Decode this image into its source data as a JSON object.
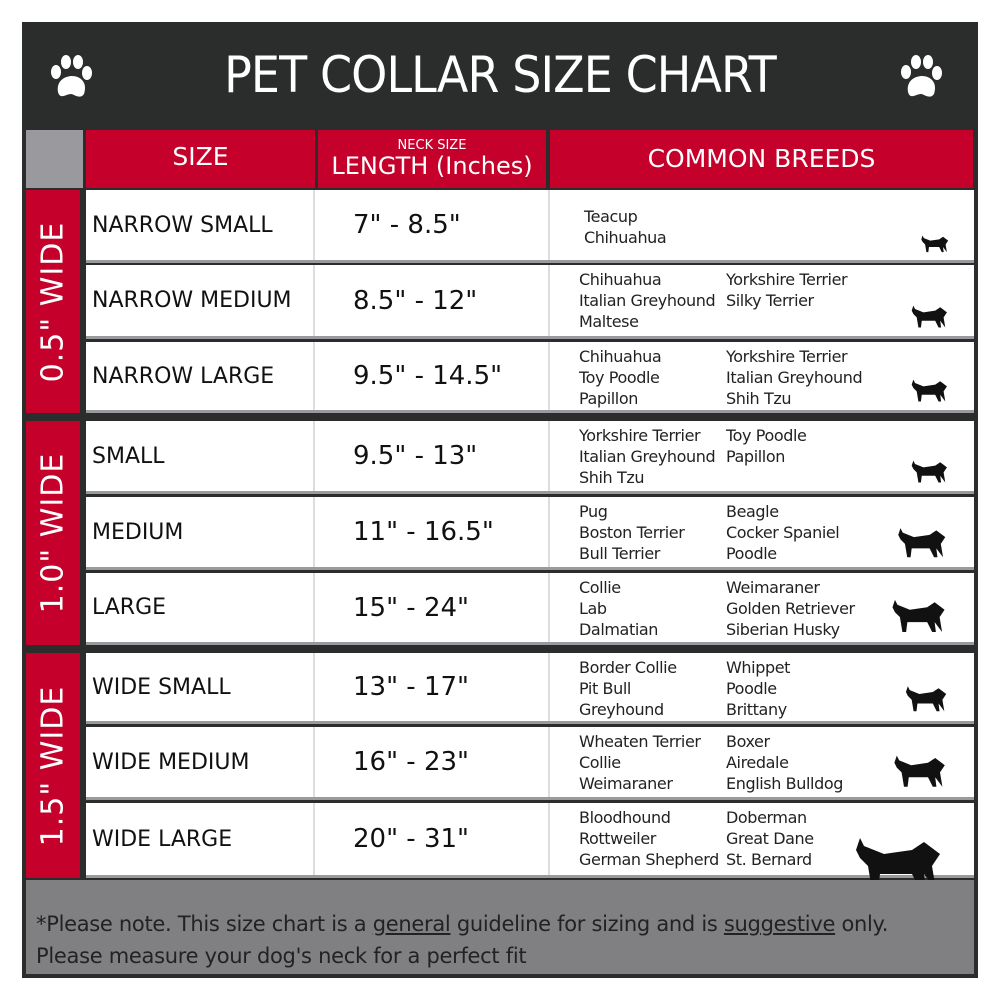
{
  "title": "PET COLLAR SIZE CHART",
  "header": {
    "size": "SIZE",
    "neck_size": "NECK SIZE",
    "length": "LENGTH (Inches)",
    "breeds": "COMMON BREEDS"
  },
  "colors": {
    "accent": "#c4002b",
    "dark": "#2b2c2c",
    "footer": "#808083"
  },
  "icons": [
    "paw-print-icon",
    "dog-silhouette-icon"
  ],
  "groups": [
    {
      "label": "0.5\" WIDE"
    },
    {
      "label": "1.0\" WIDE"
    },
    {
      "label": "1.5\" WIDE"
    }
  ],
  "rows": [
    {
      "size": "NARROW SMALL",
      "length": "7\" - 8.5\"",
      "breeds1": [
        "Teacup",
        "Chihuahua"
      ],
      "breeds2": []
    },
    {
      "size": "NARROW MEDIUM",
      "length": "8.5\" - 12\"",
      "breeds1": [
        "Chihuahua",
        "Italian Greyhound",
        "Maltese"
      ],
      "breeds2": [
        "Yorkshire Terrier",
        "Silky Terrier"
      ]
    },
    {
      "size": "NARROW LARGE",
      "length": "9.5\" - 14.5\"",
      "breeds1": [
        "Chihuahua",
        "Toy Poodle",
        "Papillon"
      ],
      "breeds2": [
        "Yorkshire Terrier",
        "Italian Greyhound",
        "Shih Tzu"
      ]
    },
    {
      "size": "SMALL",
      "length": "9.5\" - 13\"",
      "breeds1": [
        "Yorkshire Terrier",
        "Italian Greyhound",
        "Shih Tzu"
      ],
      "breeds2": [
        "Toy Poodle",
        "Papillon"
      ]
    },
    {
      "size": "MEDIUM",
      "length": "11\" - 16.5\"",
      "breeds1": [
        "Pug",
        "Boston Terrier",
        "Bull Terrier"
      ],
      "breeds2": [
        "Beagle",
        "Cocker Spaniel",
        "Poodle"
      ]
    },
    {
      "size": "LARGE",
      "length": "15\" - 24\"",
      "breeds1": [
        "Collie",
        "Lab",
        "Dalmatian"
      ],
      "breeds2": [
        "Weimaraner",
        "Golden Retriever",
        "Siberian Husky"
      ]
    },
    {
      "size": "WIDE SMALL",
      "length": "13\" - 17\"",
      "breeds1": [
        "Border Collie",
        "Pit Bull",
        "Greyhound"
      ],
      "breeds2": [
        "Whippet",
        "Poodle",
        "Brittany"
      ]
    },
    {
      "size": "WIDE MEDIUM",
      "length": "16\" - 23\"",
      "breeds1": [
        "Wheaten Terrier",
        "Collie",
        "Weimaraner"
      ],
      "breeds2": [
        "Boxer",
        "Airedale",
        "English Bulldog"
      ]
    },
    {
      "size": "WIDE LARGE",
      "length": "20\" - 31\"",
      "breeds1": [
        "Bloodhound",
        "Rottweiler",
        "German Shepherd"
      ],
      "breeds2": [
        "Doberman",
        "Great Dane",
        "St. Bernard"
      ]
    }
  ],
  "footer": {
    "p1": "*Please note. This size chart is a",
    "u1": "general",
    "p2": " guideline for sizing and is",
    "u2": "suggestive",
    "p3": " only.",
    "line2": "Please measure your dog's neck for a perfect fit"
  }
}
